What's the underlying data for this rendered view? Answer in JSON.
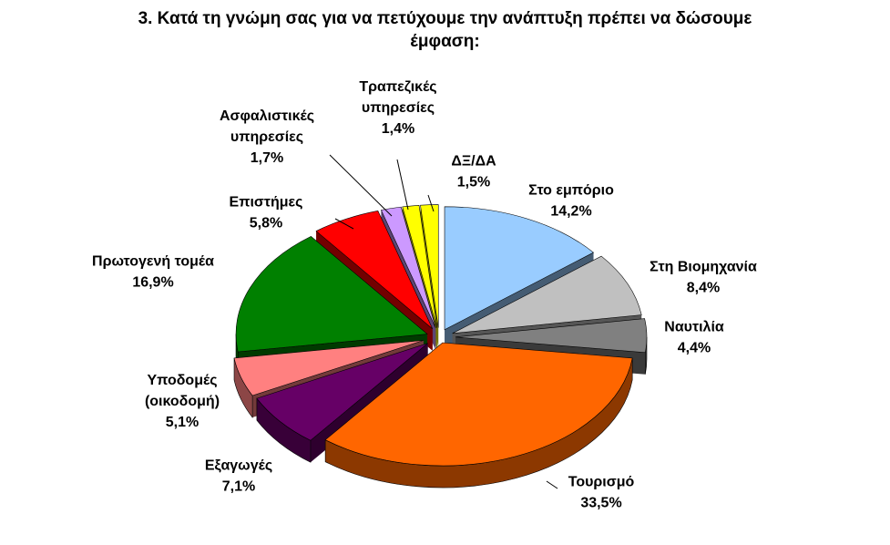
{
  "chart_data": {
    "type": "pie",
    "title_line1": "3. Κατά τη γνώμη σας για να πετύχουμε την ανάπτυξη πρέπει να δώσουμε",
    "title_line2": "έμφαση:",
    "slices": [
      {
        "label": "Στο εμπόριο",
        "value": 14.2,
        "text": "14,2%",
        "color": "#99ccff"
      },
      {
        "label": "Στη Βιομηχανία",
        "value": 8.4,
        "text": "8,4%",
        "color": "#c0c0c0"
      },
      {
        "label": "Ναυτιλία",
        "value": 4.4,
        "text": "4,4%",
        "color": "#808080"
      },
      {
        "label": "Τουρισμό",
        "value": 33.5,
        "text": "33,5%",
        "color": "#ff6600"
      },
      {
        "label": "Εξαγωγές",
        "value": 7.1,
        "text": "7,1%",
        "color": "#660066"
      },
      {
        "label": "Υποδομές (οικοδομή)",
        "value": 5.1,
        "text": "5,1%",
        "color": "#ff8080"
      },
      {
        "label": "Πρωτογενή τομέα",
        "value": 16.9,
        "text": "16,9%",
        "color": "#008000"
      },
      {
        "label": "Επιστήμες",
        "value": 5.8,
        "text": "5,8%",
        "color": "#ff0000"
      },
      {
        "label": "Ασφαλιστικές υπηρεσίες",
        "value": 1.7,
        "text": "1,7%",
        "color": "#cc99ff"
      },
      {
        "label": "Τραπεζικές υπηρεσίες",
        "value": 1.4,
        "text": "1,4%",
        "color": "#ffff00"
      },
      {
        "label": "ΔΞ/ΔΑ",
        "value": 1.5,
        "text": "1,5%",
        "color": "#ffff00"
      }
    ]
  }
}
